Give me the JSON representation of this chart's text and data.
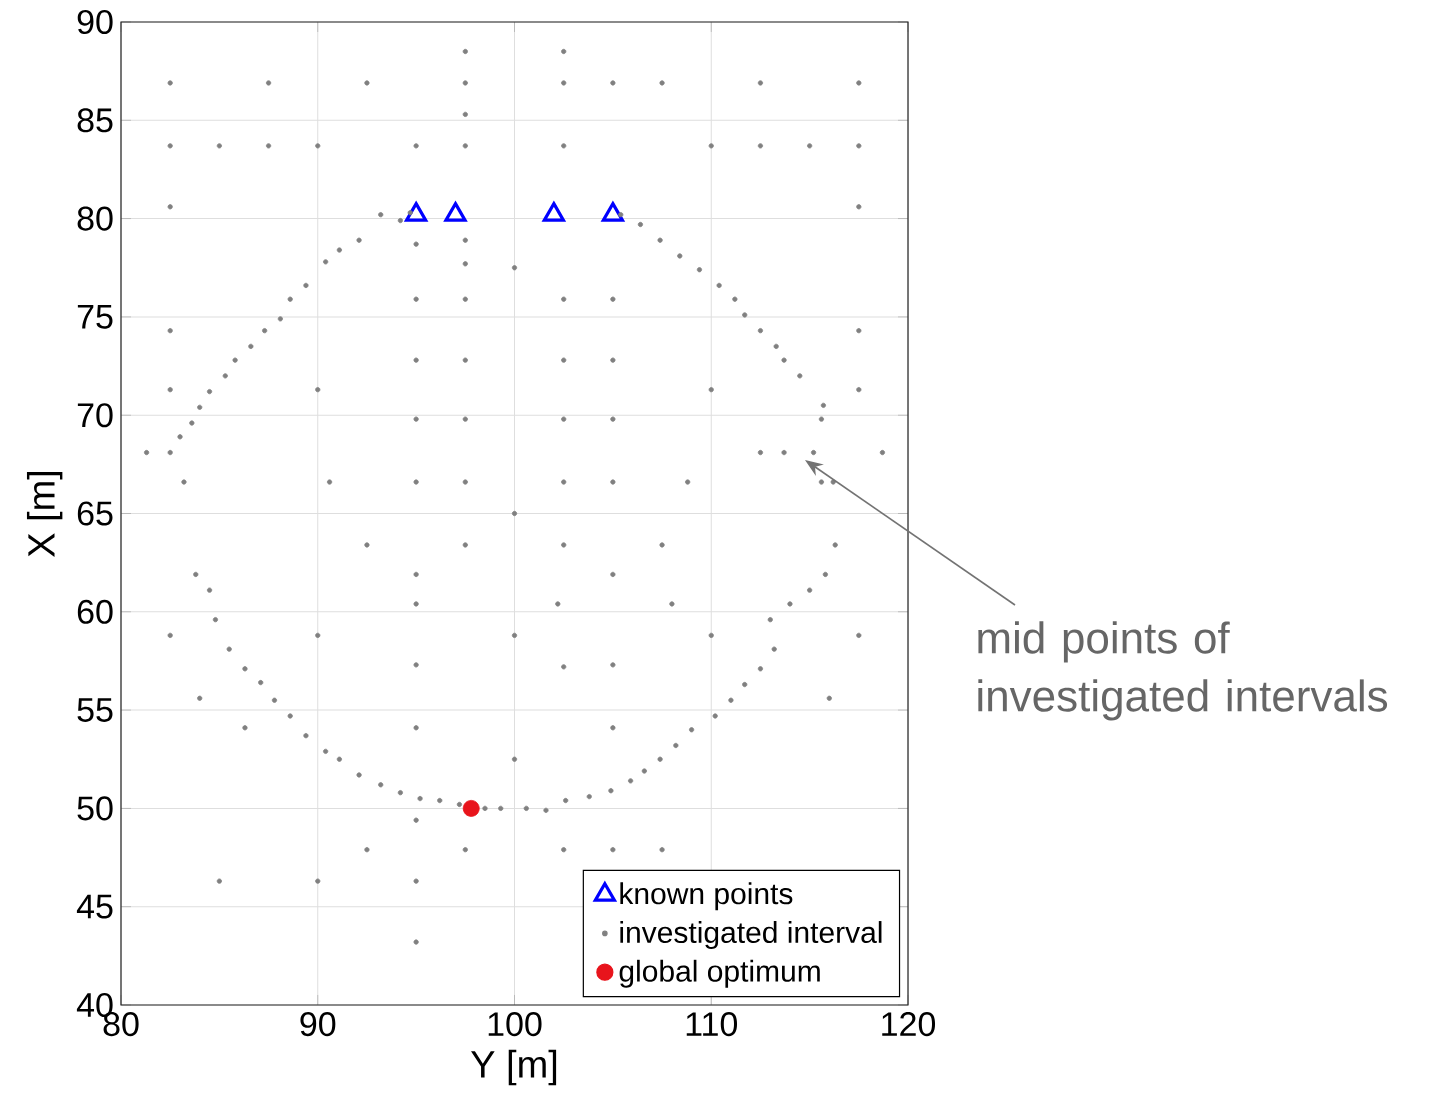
{
  "chart_data": {
    "type": "scatter",
    "xlabel": "Y [m]",
    "ylabel": "X [m]",
    "xlim": [
      80,
      120
    ],
    "ylim": [
      40,
      90
    ],
    "xticks": [
      80,
      90,
      100,
      110,
      120
    ],
    "yticks": [
      40,
      45,
      50,
      55,
      60,
      65,
      70,
      75,
      80,
      85,
      90
    ],
    "grid": true,
    "legend": "bottom right",
    "annotations": [
      "mid points of investigated intervals"
    ],
    "series": [
      {
        "name": "known points",
        "color": "#0000ff",
        "marker": "triangle",
        "x": [
          95,
          97,
          102,
          105
        ],
        "values": [
          80.2,
          80.2,
          80.2,
          80.2
        ]
      },
      {
        "name": "investigated interval",
        "color": "#808080",
        "marker": "circle",
        "x": [
          82.5,
          87.5,
          92.5,
          97.5,
          97.5,
          97.5,
          102.5,
          102.5,
          105,
          107.5,
          112.5,
          117.5,
          82.5,
          85,
          87.5,
          90,
          95,
          97.5,
          102.5,
          110,
          112.5,
          115,
          117.5,
          82.5,
          117.5,
          82.5,
          117.5,
          82.5,
          117.5,
          81.3,
          118.7,
          93.2,
          94.2,
          94.7,
          92.1,
          91.1,
          90.4,
          89.4,
          88.6,
          88.1,
          87.3,
          86.6,
          85.8,
          85.3,
          84.5,
          84.0,
          83.6,
          83.0,
          82.5,
          83.2,
          83.8,
          84.5,
          84.8,
          85.5,
          86.3,
          87.1,
          87.8,
          88.6,
          89.4,
          90.4,
          91.1,
          92.1,
          93.2,
          94.2,
          95.2,
          96.2,
          97.2,
          98.5,
          99.3,
          100.6,
          101.6,
          102.6,
          103.8,
          104.9,
          105.9,
          106.6,
          107.4,
          108.2,
          109.0,
          110.2,
          111.0,
          111.7,
          112.5,
          113.2,
          113.0,
          114.0,
          115.0,
          115.8,
          116.3,
          115.6,
          116.2,
          115.2,
          113.7,
          112.5,
          115.6,
          115.7,
          114.5,
          113.7,
          113.3,
          112.5,
          111.7,
          111.2,
          110.4,
          109.4,
          108.4,
          107.4,
          106.4,
          105.4,
          95,
          97.5,
          97.5,
          95,
          97.5,
          102.5,
          105,
          97.5,
          95,
          102.5,
          105,
          100,
          97.5,
          95,
          102.5,
          105,
          90,
          110,
          90.6,
          95,
          97.5,
          102.5,
          105,
          108.8,
          100,
          92.5,
          97.5,
          102.5,
          107.5,
          95,
          105,
          95,
          102.2,
          108.0,
          90,
          100,
          110,
          82.5,
          117.5,
          95,
          102.5,
          105,
          95,
          105,
          100,
          92.5,
          95,
          97.5,
          102.5,
          105,
          107.5,
          85,
          90,
          95,
          95,
          84.0,
          86.3,
          116.0
        ],
        "values": [
          86.9,
          86.9,
          86.9,
          88.5,
          86.9,
          85.3,
          88.5,
          86.9,
          86.9,
          86.9,
          86.9,
          86.9,
          83.7,
          83.7,
          83.7,
          83.7,
          83.7,
          83.7,
          83.7,
          83.7,
          83.7,
          83.7,
          83.7,
          80.6,
          80.6,
          74.3,
          74.3,
          71.3,
          71.3,
          68.1,
          68.1,
          80.2,
          79.9,
          80.3,
          78.9,
          78.4,
          77.8,
          76.6,
          75.9,
          74.9,
          74.3,
          73.5,
          72.8,
          72.0,
          71.2,
          70.4,
          69.6,
          68.9,
          68.1,
          66.6,
          61.9,
          61.1,
          59.6,
          58.1,
          57.1,
          56.4,
          55.5,
          54.7,
          53.7,
          52.9,
          52.5,
          51.7,
          51.2,
          50.8,
          50.5,
          50.4,
          50.2,
          50.0,
          50.0,
          50.0,
          49.9,
          50.4,
          50.6,
          50.9,
          51.4,
          51.9,
          52.5,
          53.2,
          54.0,
          54.7,
          55.5,
          56.3,
          57.1,
          58.1,
          59.6,
          60.4,
          61.1,
          61.9,
          63.4,
          66.6,
          66.6,
          68.1,
          68.1,
          68.1,
          69.8,
          70.5,
          72.0,
          72.8,
          73.5,
          74.3,
          75.1,
          75.9,
          76.6,
          77.4,
          78.1,
          78.9,
          79.7,
          80.2,
          78.7,
          78.9,
          77.7,
          75.9,
          75.9,
          75.9,
          75.9,
          72.8,
          72.8,
          72.8,
          72.8,
          77.5,
          69.8,
          69.8,
          69.8,
          69.8,
          71.3,
          71.3,
          66.6,
          66.6,
          66.6,
          66.6,
          66.6,
          66.6,
          65.0,
          63.4,
          63.4,
          63.4,
          63.4,
          61.9,
          61.9,
          60.4,
          60.4,
          60.4,
          58.8,
          58.8,
          58.8,
          58.8,
          58.8,
          57.3,
          57.2,
          57.3,
          54.1,
          54.1,
          52.5,
          47.9,
          49.4,
          47.9,
          47.9,
          47.9,
          47.9,
          46.3,
          46.3,
          46.3,
          43.2,
          55.6,
          54.1,
          55.6
        ]
      },
      {
        "name": "global optimum",
        "color": "#e8141c",
        "marker": "circle",
        "x": [
          97.8
        ],
        "values": [
          50.0
        ]
      }
    ]
  }
}
